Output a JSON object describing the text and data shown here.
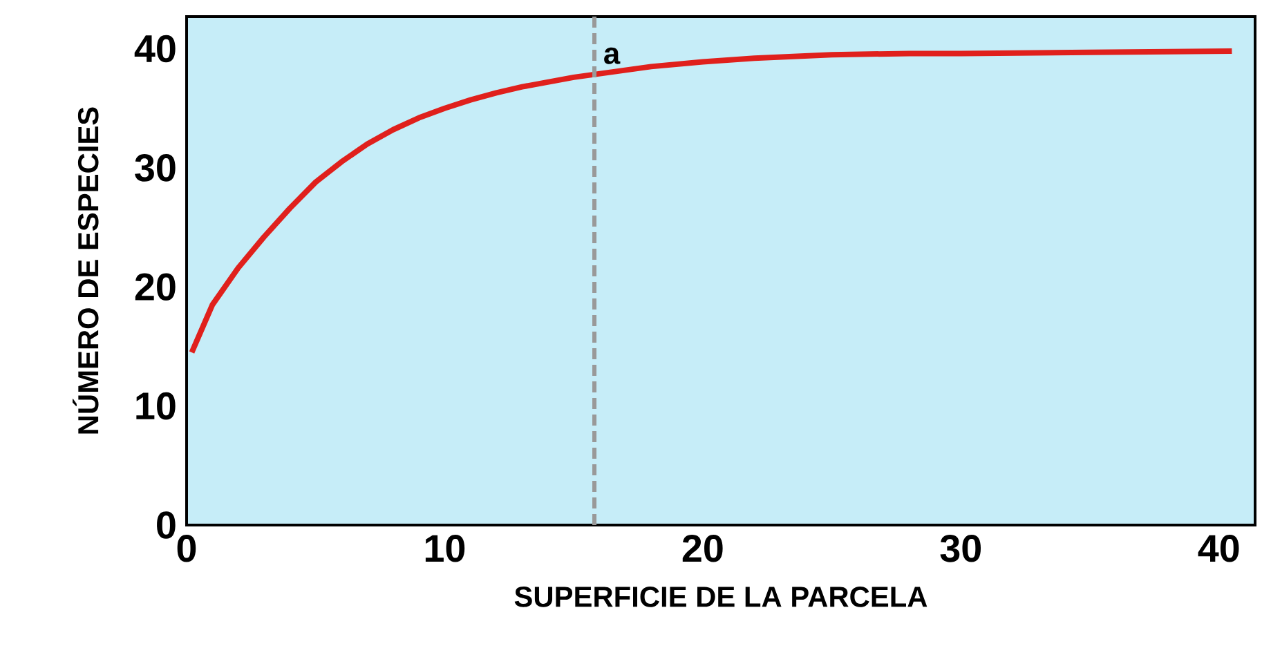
{
  "chart_data": {
    "type": "line",
    "xlabel": "SUPERFICIE DE LA PARCELA",
    "ylabel": "NÚMERO DE ESPECIES",
    "xlim": [
      0,
      41.4
    ],
    "ylim": [
      0,
      42.7
    ],
    "xticks": [
      0,
      10,
      20,
      30,
      40
    ],
    "yticks": [
      0,
      10,
      20,
      30,
      40
    ],
    "series": [
      {
        "color": "#e0201c",
        "x": [
          0.2,
          1,
          2,
          3,
          4,
          5,
          6,
          7,
          8,
          9,
          10,
          11,
          12,
          13,
          14,
          15,
          16,
          18,
          20,
          22,
          25,
          28,
          30,
          35,
          40.5
        ],
        "values": [
          14.5,
          18.5,
          21.6,
          24.2,
          26.6,
          28.8,
          30.5,
          32,
          33.2,
          34.2,
          35,
          35.7,
          36.3,
          36.8,
          37.2,
          37.6,
          37.9,
          38.5,
          38.9,
          39.2,
          39.5,
          39.6,
          39.6,
          39.7,
          39.8
        ]
      }
    ],
    "ref_lines": [
      {
        "axis": "x",
        "value": 15.8,
        "label": "a",
        "color": "#999999",
        "line_style": "dashed"
      }
    ],
    "grid": false,
    "marker": "none",
    "line_style": "solid"
  }
}
